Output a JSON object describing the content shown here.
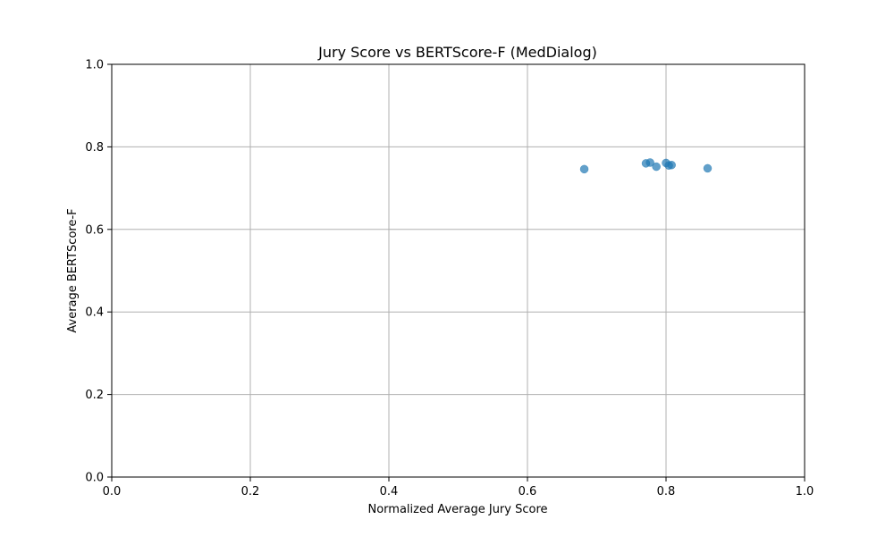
{
  "chart_data": {
    "type": "scatter",
    "title": "Jury Score vs BERTScore-F (MedDialog)",
    "xlabel": "Normalized Average Jury Score",
    "ylabel": "Average BERTScore-F",
    "xlim": [
      0.0,
      1.0
    ],
    "ylim": [
      0.0,
      1.0
    ],
    "x_ticks": [
      "0.0",
      "0.2",
      "0.4",
      "0.6",
      "0.8",
      "1.0"
    ],
    "y_ticks": [
      "0.0",
      "0.2",
      "0.4",
      "0.6",
      "0.8",
      "1.0"
    ],
    "grid": true,
    "marker_color": "#1f77b4",
    "marker_alpha": 0.7,
    "points": [
      {
        "x": 0.682,
        "y": 0.746
      },
      {
        "x": 0.771,
        "y": 0.76
      },
      {
        "x": 0.777,
        "y": 0.762
      },
      {
        "x": 0.786,
        "y": 0.752
      },
      {
        "x": 0.8,
        "y": 0.761
      },
      {
        "x": 0.804,
        "y": 0.755
      },
      {
        "x": 0.808,
        "y": 0.756
      },
      {
        "x": 0.86,
        "y": 0.748
      }
    ]
  }
}
